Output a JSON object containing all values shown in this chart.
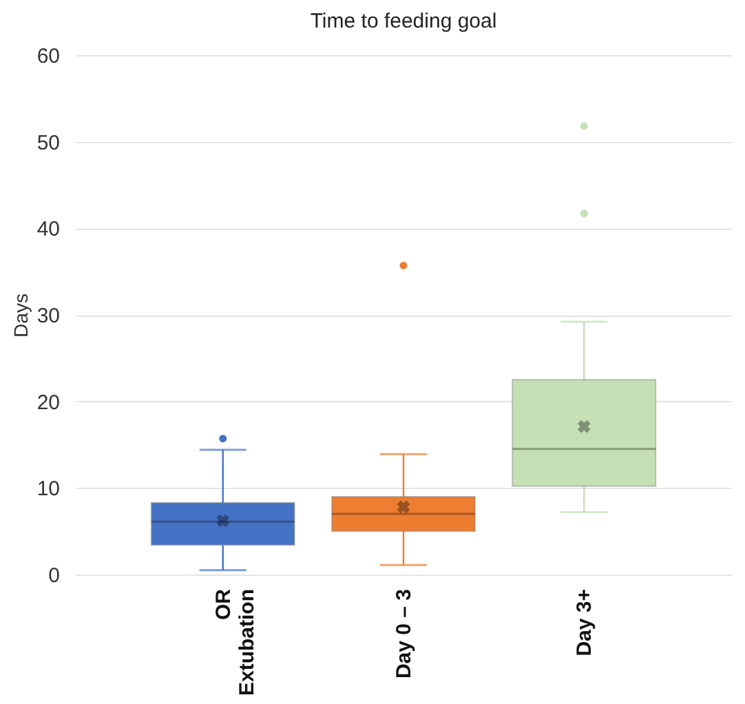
{
  "chart_data": {
    "type": "box",
    "title": "Time to feeding goal",
    "ylabel": "Days",
    "categories": [
      "OR Extubation",
      "Day 0 – 3",
      "Day 3+"
    ],
    "colors": [
      "#4472c4",
      "#ed7d31",
      "#c5e0b4"
    ],
    "boxes": [
      {
        "low": 0.5,
        "q1": 3.4,
        "median": 6.1,
        "q3": 8.3,
        "high": 14.4,
        "mean": 6.2,
        "outliers": [
          15.7
        ]
      },
      {
        "low": 1.1,
        "q1": 5.0,
        "median": 7.0,
        "q3": 9.0,
        "high": 13.9,
        "mean": 7.8,
        "outliers": [
          35.7
        ]
      },
      {
        "low": 7.2,
        "q1": 10.2,
        "median": 14.5,
        "q3": 22.5,
        "high": 29.2,
        "mean": 17.1,
        "outliers": [
          41.7,
          51.8
        ]
      }
    ],
    "ylim": [
      0,
      60
    ],
    "yticks": [
      0,
      10,
      20,
      30,
      40,
      50,
      60
    ],
    "grid": "y"
  }
}
